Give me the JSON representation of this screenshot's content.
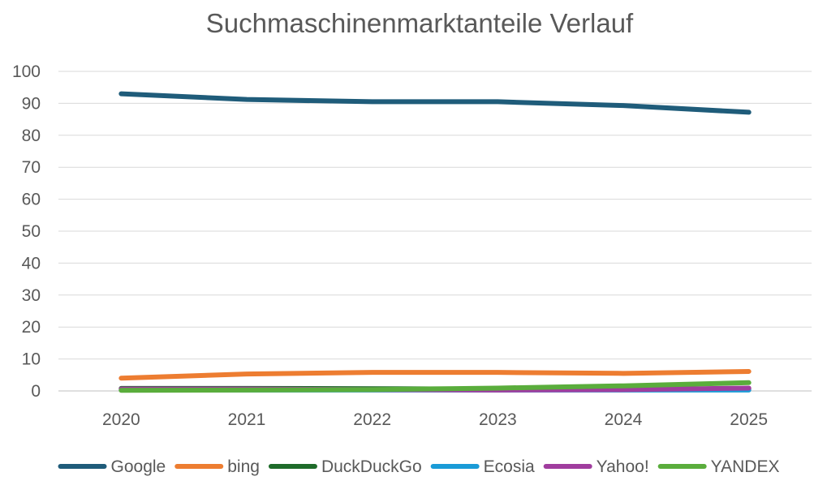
{
  "chart_data": {
    "type": "line",
    "title": "Suchmaschinenmarktanteile Verlauf",
    "xlabel": "",
    "ylabel": "",
    "categories": [
      "2020",
      "2021",
      "2022",
      "2023",
      "2024",
      "2025"
    ],
    "y_ticks": [
      "0",
      "10",
      "20",
      "30",
      "40",
      "50",
      "60",
      "70",
      "80",
      "90",
      "100"
    ],
    "ylim": [
      0,
      100
    ],
    "grid": true,
    "legend_position": "bottom",
    "series": [
      {
        "name": "Google",
        "color": "#1f5c7a",
        "values": [
          93,
          91.2,
          90.5,
          90.5,
          89.3,
          87.2
        ]
      },
      {
        "name": "bing",
        "color": "#ed7d31",
        "values": [
          4.0,
          5.3,
          5.8,
          5.8,
          5.5,
          6.1
        ]
      },
      {
        "name": "DuckDuckGo",
        "color": "#1e6b2a",
        "values": [
          0.8,
          0.8,
          0.7,
          0.6,
          0.6,
          0.6
        ]
      },
      {
        "name": "Ecosia",
        "color": "#1a9bd7",
        "values": [
          0.3,
          0.3,
          0.3,
          0.3,
          0.3,
          0.3
        ]
      },
      {
        "name": "Yahoo!",
        "color": "#a03d9e",
        "values": [
          0.6,
          0.6,
          0.4,
          0.3,
          0.4,
          0.9
        ]
      },
      {
        "name": "YANDEX",
        "color": "#5aad3c",
        "values": [
          0.2,
          0.3,
          0.4,
          0.9,
          1.6,
          2.6
        ]
      }
    ]
  }
}
